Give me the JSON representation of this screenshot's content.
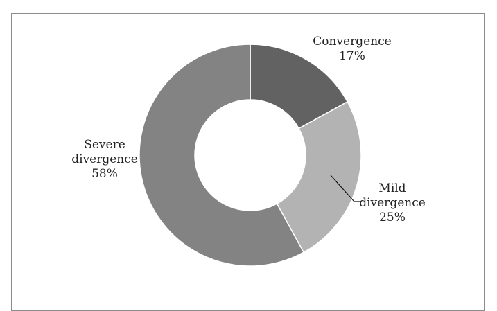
{
  "chart_data": {
    "type": "donut",
    "title": "",
    "slices": [
      {
        "label": "Convergence",
        "label_lines": [
          "Convergence"
        ],
        "value": 17,
        "value_label": "17%",
        "color": "#626262"
      },
      {
        "label": "Mild divergence",
        "label_lines": [
          "Mild",
          "divergence"
        ],
        "value": 25,
        "value_label": "25%",
        "color": "#b3b3b3"
      },
      {
        "label": "Severe divergence",
        "label_lines": [
          "Severe",
          "divergence"
        ],
        "value": 58,
        "value_label": "58%",
        "color": "#838383"
      }
    ],
    "start": "12 o'clock",
    "direction": "clockwise",
    "legend": "none",
    "slice_border_color": "#ffffff"
  }
}
